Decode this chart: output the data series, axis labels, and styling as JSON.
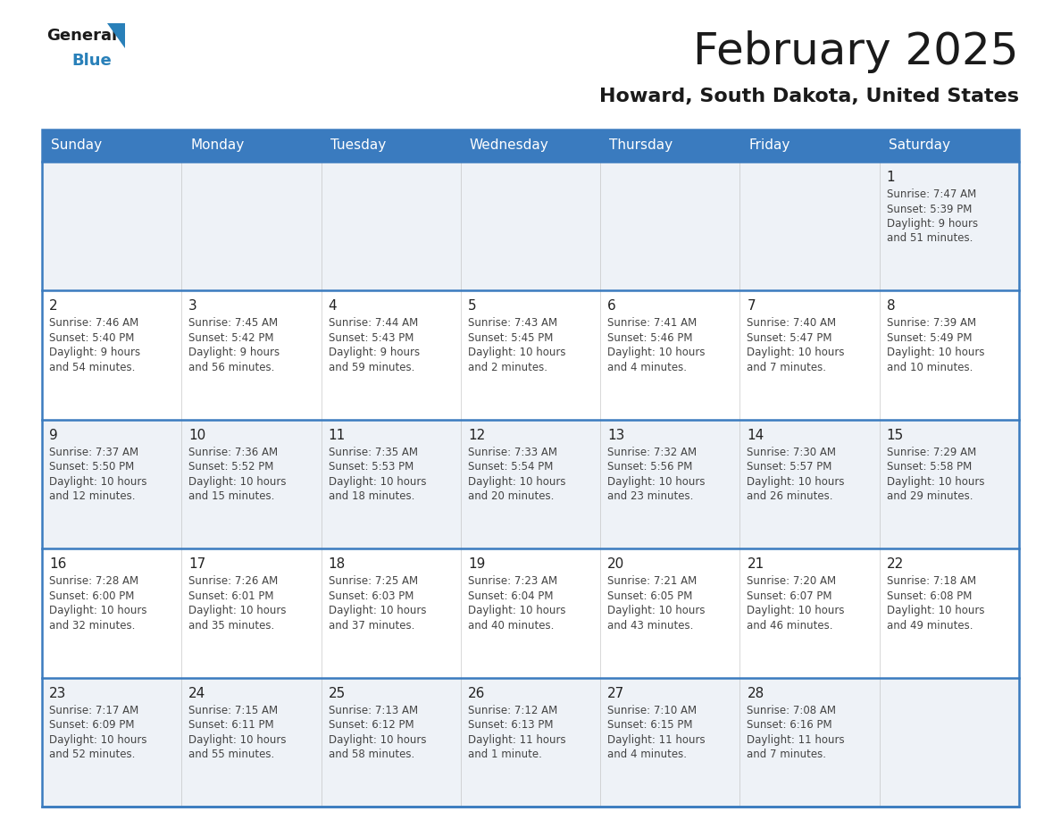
{
  "title": "February 2025",
  "subtitle": "Howard, South Dakota, United States",
  "header_bg_color": "#3a7bbf",
  "header_text_color": "#ffffff",
  "row_bg_even": "#eef2f7",
  "row_bg_odd": "#ffffff",
  "border_color": "#3a7bbf",
  "title_color": "#1a1a1a",
  "subtitle_color": "#1a1a1a",
  "day_number_color": "#222222",
  "cell_text_color": "#444444",
  "logo_text_color": "#1a1a1a",
  "logo_blue_color": "#2980b9",
  "logo_triangle_color": "#2980b9",
  "days_of_week": [
    "Sunday",
    "Monday",
    "Tuesday",
    "Wednesday",
    "Thursday",
    "Friday",
    "Saturday"
  ],
  "calendar_data": [
    [
      null,
      null,
      null,
      null,
      null,
      null,
      {
        "day": "1",
        "sunrise": "7:47 AM",
        "sunset": "5:39 PM",
        "daylight_line1": "9 hours",
        "daylight_line2": "and 51 minutes."
      }
    ],
    [
      {
        "day": "2",
        "sunrise": "7:46 AM",
        "sunset": "5:40 PM",
        "daylight_line1": "9 hours",
        "daylight_line2": "and 54 minutes."
      },
      {
        "day": "3",
        "sunrise": "7:45 AM",
        "sunset": "5:42 PM",
        "daylight_line1": "9 hours",
        "daylight_line2": "and 56 minutes."
      },
      {
        "day": "4",
        "sunrise": "7:44 AM",
        "sunset": "5:43 PM",
        "daylight_line1": "9 hours",
        "daylight_line2": "and 59 minutes."
      },
      {
        "day": "5",
        "sunrise": "7:43 AM",
        "sunset": "5:45 PM",
        "daylight_line1": "10 hours",
        "daylight_line2": "and 2 minutes."
      },
      {
        "day": "6",
        "sunrise": "7:41 AM",
        "sunset": "5:46 PM",
        "daylight_line1": "10 hours",
        "daylight_line2": "and 4 minutes."
      },
      {
        "day": "7",
        "sunrise": "7:40 AM",
        "sunset": "5:47 PM",
        "daylight_line1": "10 hours",
        "daylight_line2": "and 7 minutes."
      },
      {
        "day": "8",
        "sunrise": "7:39 AM",
        "sunset": "5:49 PM",
        "daylight_line1": "10 hours",
        "daylight_line2": "and 10 minutes."
      }
    ],
    [
      {
        "day": "9",
        "sunrise": "7:37 AM",
        "sunset": "5:50 PM",
        "daylight_line1": "10 hours",
        "daylight_line2": "and 12 minutes."
      },
      {
        "day": "10",
        "sunrise": "7:36 AM",
        "sunset": "5:52 PM",
        "daylight_line1": "10 hours",
        "daylight_line2": "and 15 minutes."
      },
      {
        "day": "11",
        "sunrise": "7:35 AM",
        "sunset": "5:53 PM",
        "daylight_line1": "10 hours",
        "daylight_line2": "and 18 minutes."
      },
      {
        "day": "12",
        "sunrise": "7:33 AM",
        "sunset": "5:54 PM",
        "daylight_line1": "10 hours",
        "daylight_line2": "and 20 minutes."
      },
      {
        "day": "13",
        "sunrise": "7:32 AM",
        "sunset": "5:56 PM",
        "daylight_line1": "10 hours",
        "daylight_line2": "and 23 minutes."
      },
      {
        "day": "14",
        "sunrise": "7:30 AM",
        "sunset": "5:57 PM",
        "daylight_line1": "10 hours",
        "daylight_line2": "and 26 minutes."
      },
      {
        "day": "15",
        "sunrise": "7:29 AM",
        "sunset": "5:58 PM",
        "daylight_line1": "10 hours",
        "daylight_line2": "and 29 minutes."
      }
    ],
    [
      {
        "day": "16",
        "sunrise": "7:28 AM",
        "sunset": "6:00 PM",
        "daylight_line1": "10 hours",
        "daylight_line2": "and 32 minutes."
      },
      {
        "day": "17",
        "sunrise": "7:26 AM",
        "sunset": "6:01 PM",
        "daylight_line1": "10 hours",
        "daylight_line2": "and 35 minutes."
      },
      {
        "day": "18",
        "sunrise": "7:25 AM",
        "sunset": "6:03 PM",
        "daylight_line1": "10 hours",
        "daylight_line2": "and 37 minutes."
      },
      {
        "day": "19",
        "sunrise": "7:23 AM",
        "sunset": "6:04 PM",
        "daylight_line1": "10 hours",
        "daylight_line2": "and 40 minutes."
      },
      {
        "day": "20",
        "sunrise": "7:21 AM",
        "sunset": "6:05 PM",
        "daylight_line1": "10 hours",
        "daylight_line2": "and 43 minutes."
      },
      {
        "day": "21",
        "sunrise": "7:20 AM",
        "sunset": "6:07 PM",
        "daylight_line1": "10 hours",
        "daylight_line2": "and 46 minutes."
      },
      {
        "day": "22",
        "sunrise": "7:18 AM",
        "sunset": "6:08 PM",
        "daylight_line1": "10 hours",
        "daylight_line2": "and 49 minutes."
      }
    ],
    [
      {
        "day": "23",
        "sunrise": "7:17 AM",
        "sunset": "6:09 PM",
        "daylight_line1": "10 hours",
        "daylight_line2": "and 52 minutes."
      },
      {
        "day": "24",
        "sunrise": "7:15 AM",
        "sunset": "6:11 PM",
        "daylight_line1": "10 hours",
        "daylight_line2": "and 55 minutes."
      },
      {
        "day": "25",
        "sunrise": "7:13 AM",
        "sunset": "6:12 PM",
        "daylight_line1": "10 hours",
        "daylight_line2": "and 58 minutes."
      },
      {
        "day": "26",
        "sunrise": "7:12 AM",
        "sunset": "6:13 PM",
        "daylight_line1": "11 hours",
        "daylight_line2": "and 1 minute."
      },
      {
        "day": "27",
        "sunrise": "7:10 AM",
        "sunset": "6:15 PM",
        "daylight_line1": "11 hours",
        "daylight_line2": "and 4 minutes."
      },
      {
        "day": "28",
        "sunrise": "7:08 AM",
        "sunset": "6:16 PM",
        "daylight_line1": "11 hours",
        "daylight_line2": "and 7 minutes."
      },
      null
    ]
  ]
}
